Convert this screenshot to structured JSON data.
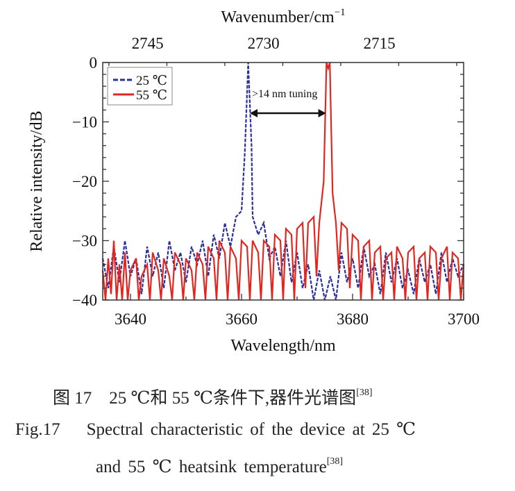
{
  "chart_data": {
    "type": "line",
    "xlabel": "Wavelength/nm",
    "ylabel": "Relative intensity/dB",
    "top_xlabel": "Wavenumber/cm",
    "top_xlabel_sup": "−1",
    "xlim": [
      3635,
      3700
    ],
    "ylim": [
      -40,
      0
    ],
    "top_xlim": [
      2750.8,
      2704.1
    ],
    "xticks": [
      3640,
      3660,
      3680,
      3700
    ],
    "yticks": [
      0,
      -10,
      -20,
      -30,
      -40
    ],
    "top_xticks": [
      2745,
      2730,
      2715
    ],
    "grid": false,
    "legend_position": "top-left",
    "annotation": ">14 nm tuning",
    "annotation_arrow": [
      3661.5,
      3675.2
    ],
    "series": [
      {
        "name": "25 ℃",
        "color": "#2a2f9a",
        "style": "dashed",
        "x": [
          3635,
          3636,
          3637,
          3638,
          3639,
          3640,
          3641,
          3642,
          3643,
          3644,
          3645,
          3646,
          3647,
          3648,
          3649,
          3650,
          3651,
          3652,
          3653,
          3654,
          3655,
          3656,
          3657,
          3658,
          3659,
          3660,
          3660.6,
          3661.2,
          3661.8,
          3662,
          3663,
          3664,
          3665,
          3666,
          3667,
          3668,
          3669,
          3670,
          3671,
          3672,
          3673,
          3674,
          3675,
          3676,
          3677,
          3678,
          3679,
          3680,
          3681,
          3682,
          3683,
          3684,
          3685,
          3686,
          3687,
          3688,
          3689,
          3690,
          3691,
          3692,
          3693,
          3694,
          3695,
          3696,
          3697,
          3698,
          3699,
          3700
        ],
        "y": [
          -33,
          -38,
          -31,
          -37,
          -30,
          -36,
          -33,
          -39,
          -31,
          -36,
          -32,
          -38,
          -30,
          -35,
          -32,
          -37,
          -31,
          -34,
          -30,
          -36,
          -29,
          -33,
          -27,
          -31,
          -26,
          -25,
          -15,
          0,
          -14,
          -26,
          -29,
          -27,
          -33,
          -31,
          -36,
          -30,
          -37,
          -32,
          -38,
          -34,
          -40,
          -35,
          -40,
          -36,
          -40,
          -32,
          -37,
          -33,
          -38,
          -31,
          -36,
          -34,
          -39,
          -32,
          -37,
          -33,
          -38,
          -35,
          -39,
          -33,
          -37,
          -34,
          -39,
          -32,
          -37,
          -33,
          -36,
          -34
        ]
      },
      {
        "name": "55 ℃",
        "color": "#e0261f",
        "style": "solid",
        "x": [
          3635,
          3635.5,
          3636,
          3636.5,
          3637,
          3637.5,
          3638,
          3638.5,
          3639,
          3639.5,
          3640,
          3641,
          3641.5,
          3642,
          3643,
          3643.5,
          3644,
          3645,
          3645.5,
          3646,
          3647,
          3647.5,
          3648,
          3649,
          3649.5,
          3650,
          3651,
          3651.5,
          3652,
          3653,
          3653.5,
          3654,
          3655,
          3655.5,
          3656,
          3657,
          3657.5,
          3658,
          3659,
          3659.5,
          3660,
          3661,
          3661.5,
          3662,
          3663,
          3663.5,
          3664,
          3665,
          3665.5,
          3666,
          3667,
          3667.5,
          3668,
          3669,
          3669.5,
          3670,
          3671,
          3671.5,
          3672,
          3673,
          3673.5,
          3674,
          3674.8,
          3675.3,
          3675.6,
          3675.9,
          3676.4,
          3677,
          3677.5,
          3678,
          3679,
          3679.5,
          3680,
          3681,
          3681.5,
          3682,
          3683,
          3683.5,
          3684,
          3685,
          3685.5,
          3686,
          3687,
          3687.5,
          3688,
          3689,
          3689.5,
          3690,
          3691,
          3691.5,
          3692,
          3693,
          3693.5,
          3694,
          3695,
          3695.5,
          3696,
          3697,
          3697.5,
          3698,
          3699,
          3699.5,
          3700
        ],
        "y": [
          -35,
          -40,
          -33,
          -39,
          -30,
          -40,
          -34,
          -40,
          -32,
          -40,
          -35,
          -33,
          -40,
          -36,
          -34,
          -40,
          -32,
          -35,
          -40,
          -33,
          -36,
          -40,
          -32,
          -34,
          -40,
          -33,
          -35,
          -40,
          -32,
          -34,
          -40,
          -31,
          -33,
          -40,
          -30,
          -32,
          -40,
          -31,
          -33,
          -40,
          -30,
          -31,
          -40,
          -30,
          -32,
          -40,
          -30,
          -31,
          -40,
          -29,
          -30,
          -40,
          -28,
          -29,
          -40,
          -28,
          -27,
          -38,
          -27,
          -26,
          -36,
          -27,
          -20,
          0,
          -1,
          0,
          -22,
          -27,
          -35,
          -27,
          -28,
          -38,
          -29,
          -30,
          -40,
          -31,
          -30,
          -40,
          -32,
          -31,
          -40,
          -33,
          -32,
          -40,
          -31,
          -33,
          -40,
          -32,
          -31,
          -40,
          -33,
          -32,
          -40,
          -31,
          -32,
          -40,
          -33,
          -31,
          -40,
          -32,
          -33,
          -40,
          -34
        ]
      }
    ]
  },
  "caption": {
    "cn": "图 17　25 ℃和 55 ℃条件下,器件光谱图",
    "cn_ref": "[38]",
    "en_label": "Fig.17",
    "en_line1": "Spectral characteristic of the device at 25 ℃",
    "en_line2": "and 55 ℃ heatsink temperature",
    "en_ref": "[38]"
  }
}
